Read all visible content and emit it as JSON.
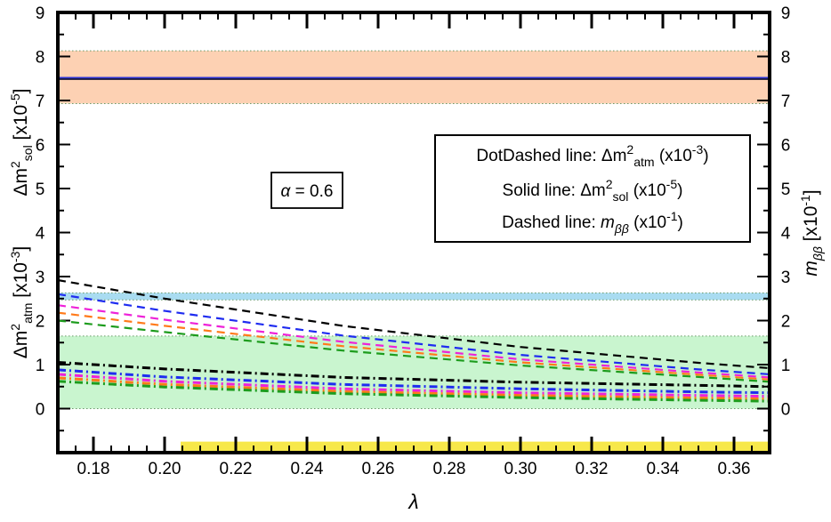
{
  "chart_data": {
    "type": "line",
    "title": "",
    "xlabel": "λ",
    "ylabel_left_top": {
      "base": "Δm",
      "sup": "2",
      "sub": "sol",
      "unit_pre": " [x10",
      "unit_exp": "-5",
      "unit_post": "]"
    },
    "ylabel_left_bottom": {
      "base": "Δm",
      "sup": "2",
      "sub": "atm",
      "unit_pre": " [x10",
      "unit_exp": "-3",
      "unit_post": "]"
    },
    "ylabel_right": {
      "base": "m",
      "sub": "ββ",
      "unit_pre": " [x10",
      "unit_exp": "-1",
      "unit_post": "]"
    },
    "xlim": [
      0.17,
      0.37
    ],
    "ylim": [
      -1,
      9
    ],
    "x_ticks": [
      "0.18",
      "0.20",
      "0.22",
      "0.24",
      "0.26",
      "0.28",
      "0.30",
      "0.32",
      "0.34",
      "0.36"
    ],
    "y_ticks": [
      "0",
      "1",
      "2",
      "3",
      "4",
      "5",
      "6",
      "7",
      "8",
      "9"
    ],
    "annotation": {
      "symbol": "α",
      "text": " = 0.6"
    },
    "legend": [
      {
        "prefix": "DotDashed line: Δm",
        "sup": "2",
        "sub": "atm",
        "suffix_pre": " (x10",
        "exp": "-3",
        "suffix_post": ")"
      },
      {
        "prefix": "Solid line: Δm",
        "sup": "2",
        "sub": "sol",
        "suffix_pre": " (x10",
        "exp": "-5",
        "suffix_post": ")"
      },
      {
        "prefix": "Dashed line: ",
        "italic": "m",
        "sub": "ββ",
        "suffix_pre": " (x10",
        "exp": "-1",
        "suffix_post": ")"
      }
    ],
    "bands": [
      {
        "name": "solar-band",
        "ymin": 6.93,
        "ymax": 8.13,
        "color": "#fdd1b3"
      },
      {
        "name": "atm-band",
        "ymin": 2.47,
        "ymax": 2.63,
        "color": "#a9dcf1"
      },
      {
        "name": "mbb-band",
        "ymin": 0.0,
        "ymax": 1.65,
        "color": "#c9f5cf"
      },
      {
        "name": "allowed-lambda-strip",
        "xmin": 0.2045,
        "xmax": 0.37,
        "ymin": -0.97,
        "ymax": -0.75,
        "color": "#f7e84a"
      }
    ],
    "series": [
      {
        "name": "solar-solid",
        "style": "solid",
        "color": "#1a1a3a",
        "x": [
          0.17,
          0.37
        ],
        "values": [
          7.5,
          7.5
        ]
      },
      {
        "name": "solar-solid-blue",
        "style": "solid",
        "color": "#2b32d6",
        "x": [
          0.17,
          0.37
        ],
        "values": [
          7.52,
          7.52
        ]
      },
      {
        "name": "mbb-black",
        "style": "dashed",
        "color": "#000000",
        "x": [
          0.17,
          0.2,
          0.25,
          0.3,
          0.35,
          0.37
        ],
        "values": [
          2.92,
          2.5,
          1.88,
          1.4,
          1.04,
          0.92
        ]
      },
      {
        "name": "mbb-blue",
        "style": "dashed",
        "color": "#1f2cf0",
        "x": [
          0.17,
          0.2,
          0.25,
          0.3,
          0.35,
          0.37
        ],
        "values": [
          2.6,
          2.22,
          1.66,
          1.22,
          0.89,
          0.78
        ]
      },
      {
        "name": "mbb-magenta",
        "style": "dashed",
        "color": "#ee22d8",
        "x": [
          0.17,
          0.2,
          0.25,
          0.3,
          0.35,
          0.37
        ],
        "values": [
          2.35,
          2.02,
          1.52,
          1.12,
          0.82,
          0.71
        ]
      },
      {
        "name": "mbb-orange",
        "style": "dashed",
        "color": "#ff7a1a",
        "x": [
          0.17,
          0.2,
          0.25,
          0.3,
          0.35,
          0.37
        ],
        "values": [
          2.18,
          1.88,
          1.42,
          1.05,
          0.77,
          0.66
        ]
      },
      {
        "name": "mbb-green",
        "style": "dashed",
        "color": "#1d9c1d",
        "x": [
          0.17,
          0.2,
          0.25,
          0.3,
          0.35,
          0.37
        ],
        "values": [
          2.0,
          1.74,
          1.32,
          0.98,
          0.72,
          0.61
        ]
      },
      {
        "name": "atm-black",
        "style": "dotdash",
        "color": "#000000",
        "x": [
          0.17,
          0.2,
          0.25,
          0.3,
          0.35,
          0.37
        ],
        "values": [
          1.05,
          0.9,
          0.71,
          0.6,
          0.53,
          0.5
        ]
      },
      {
        "name": "atm-blue",
        "style": "dotdash",
        "color": "#1f2cf0",
        "x": [
          0.17,
          0.2,
          0.25,
          0.3,
          0.35,
          0.37
        ],
        "values": [
          0.88,
          0.72,
          0.55,
          0.45,
          0.38,
          0.36
        ]
      },
      {
        "name": "atm-magenta",
        "style": "dotdash",
        "color": "#ee22d8",
        "x": [
          0.17,
          0.2,
          0.25,
          0.3,
          0.35,
          0.37
        ],
        "values": [
          0.78,
          0.62,
          0.45,
          0.36,
          0.3,
          0.28
        ]
      },
      {
        "name": "atm-orange",
        "style": "dotdash",
        "color": "#ff7a1a",
        "x": [
          0.17,
          0.2,
          0.25,
          0.3,
          0.35,
          0.37
        ],
        "values": [
          0.7,
          0.55,
          0.39,
          0.3,
          0.24,
          0.22
        ]
      },
      {
        "name": "atm-green",
        "style": "dotdash",
        "color": "#1d9c1d",
        "x": [
          0.17,
          0.2,
          0.25,
          0.3,
          0.35,
          0.37
        ],
        "values": [
          0.62,
          0.49,
          0.34,
          0.25,
          0.19,
          0.17
        ]
      }
    ]
  }
}
